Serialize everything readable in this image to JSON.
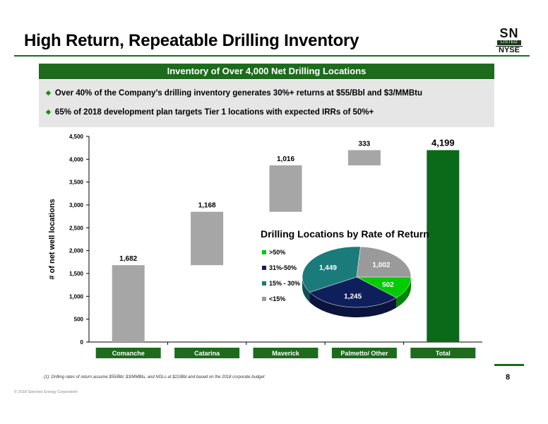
{
  "slide": {
    "title": "High Return, Repeatable Drilling Inventory",
    "banner": "Inventory of Over 4,000 Net Drilling Locations",
    "bullets": [
      "Over 40% of the Company’s drilling inventory generates 30%+ returns at $55/Bbl and $3/MMBtu",
      "65% of 2018 development plan targets Tier 1 locations with expected IRRs of 50%+"
    ],
    "footnote": "(1):  Drilling rates of return assume $55/Bbl, $3/MMBtu, and NGLs at $22/Bbl and based on the 2018 corporate budget",
    "copyright": "© 2018 Sanchez Energy Corporation",
    "page_number": "8",
    "logo": {
      "top": "SN",
      "middle": "LISTED",
      "bottom": "NYSE"
    }
  },
  "colors": {
    "brand_green": "#1e6b1e",
    "bar_gray": "#a6a6a6",
    "total_green": "#0a6a1a",
    "category_box": "#1e6b1e"
  },
  "chart_data": [
    {
      "type": "bar",
      "subtype": "waterfall",
      "ylabel": "# of net well locations",
      "ylim": [
        0,
        4500
      ],
      "yticks": [
        "0",
        "500",
        "1,000",
        "1,500",
        "2,000",
        "2,500",
        "3,000",
        "3,500",
        "4,000",
        "4,500"
      ],
      "ytick_values": [
        0,
        500,
        1000,
        1500,
        2000,
        2500,
        3000,
        3500,
        4000,
        4500
      ],
      "categories": [
        "Comanche",
        "Catarina",
        "Maverick",
        "Palmetto/ Other",
        "Total"
      ],
      "values": [
        1682,
        1168,
        1016,
        333,
        4199
      ],
      "labels": [
        "1,682",
        "1,168",
        "1,016",
        "333",
        "4,199"
      ],
      "grid": false
    },
    {
      "type": "pie",
      "title": "Drilling Locations by Rate of Return",
      "legend_position": "left",
      "slices": [
        {
          "name": ">50%",
          "value": 502,
          "label": "502",
          "color": "#00cc00"
        },
        {
          "name": "31%-50%",
          "value": 1245,
          "label": "1,245",
          "color": "#0f1f5c"
        },
        {
          "name": "15% - 30%",
          "value": 1449,
          "label": "1,449",
          "color": "#1b7b7b"
        },
        {
          "name": "<15%",
          "value": 1002,
          "label": "1,002",
          "color": "#9a9a9a"
        }
      ]
    }
  ]
}
